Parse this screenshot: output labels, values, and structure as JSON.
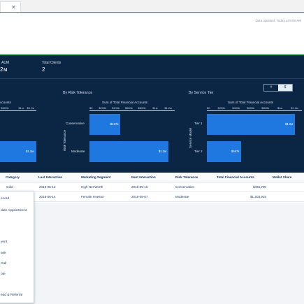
{
  "header": {
    "updated_text": "Data updated: Today at 9:08 AM"
  },
  "toggle": {
    "left": "#",
    "right": "$"
  },
  "kpis": [
    {
      "label": "AUM",
      "value": "2м"
    },
    {
      "label": "Total Clients",
      "value": "2"
    }
  ],
  "left_chart": {
    "axis_title": "ccounts",
    "ticks": [
      "$600k",
      "$1м",
      "$1.2м"
    ],
    "value": "$1.2м"
  },
  "chart_data": [
    {
      "type": "bar",
      "title": "By Risk Tolerance",
      "xlabel": "Sum of Total Financial Accounts",
      "ylabel": "Risk Tolerance",
      "categories": [
        "Conservative",
        "Moderate"
      ],
      "values": [
        466700,
        1203915
      ],
      "value_labels": [
        "$467k",
        "$1.2м"
      ],
      "ticks": [
        "$0",
        "$200k",
        "$400k",
        "$600k",
        "$800k",
        "$1м",
        "$1.2м"
      ],
      "xlim": [
        0,
        1300000
      ]
    },
    {
      "type": "bar",
      "title": "By Service Tier",
      "xlabel": "Sum of Total Financial Accounts",
      "ylabel": "Service Model",
      "categories": [
        "Tier 1",
        "Tier 2"
      ],
      "values": [
        1203915,
        466700
      ],
      "value_labels": [
        "$1.2м",
        "$467k"
      ],
      "ticks": [
        "$0",
        "$200k",
        "$400k",
        "$600k",
        "$800k",
        "$1м",
        "$1.2м"
      ],
      "xlim": [
        0,
        1300000
      ]
    }
  ],
  "table": {
    "columns": [
      "Category",
      "Last Interaction",
      "Marketing Segment",
      "Next Interaction",
      "Risk Tolerance",
      "Total Financial Accounts",
      "Wallet Share"
    ],
    "rows": [
      [
        "Gold",
        "2018-05-12",
        "High Net Worth",
        "2018-05-15",
        "Conservative",
        "$466,700",
        ""
      ],
      [
        "",
        "2018-06-14",
        "Female Investor",
        "2019-05-07",
        "Moderate",
        "$1,203,915",
        ""
      ]
    ]
  },
  "menu": {
    "items": [
      "ecord",
      "dule Appointment",
      "vent",
      "ask",
      "Call",
      "ote",
      "ead & Referral"
    ]
  }
}
